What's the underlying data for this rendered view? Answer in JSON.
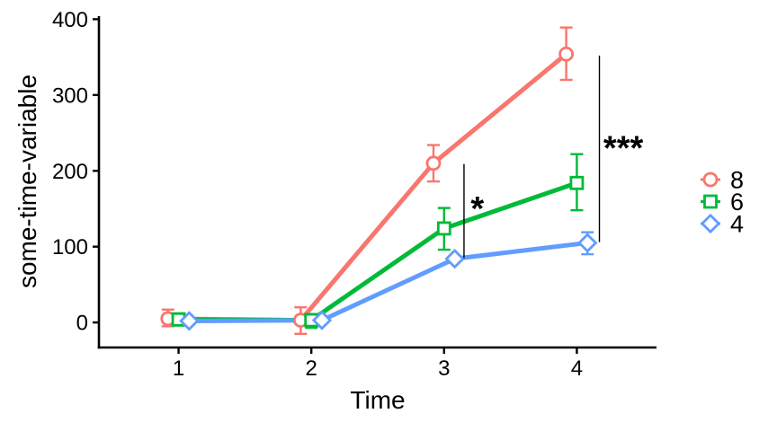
{
  "chart_data": {
    "type": "line",
    "title": "",
    "xlabel": "Time",
    "ylabel": "some-time-variable",
    "x_ticks": [
      1,
      2,
      3,
      4
    ],
    "y_ticks": [
      0,
      100,
      200,
      300,
      400
    ],
    "xlim": [
      0.4,
      4.6
    ],
    "ylim": [
      -33,
      404
    ],
    "grid": false,
    "legend_position": "right",
    "background_color": "#ffffff",
    "axis_color": "#000000",
    "point_fill": "#ffffff",
    "series": [
      {
        "name": "8",
        "shape": "circle",
        "color": "#F8766D",
        "dodge": -0.08,
        "x": [
          1,
          2,
          3,
          4
        ],
        "values": [
          5,
          3,
          210,
          354
        ],
        "err_low": [
          -5,
          -15,
          186,
          320
        ],
        "err_high": [
          17,
          20,
          234,
          389
        ]
      },
      {
        "name": "6",
        "shape": "square",
        "color": "#00BA38",
        "dodge": 0,
        "x": [
          1,
          2,
          3,
          4
        ],
        "values": [
          4,
          3,
          124,
          184
        ],
        "err_low": [
          -4,
          -7,
          96,
          148
        ],
        "err_high": [
          12,
          11,
          151,
          222
        ]
      },
      {
        "name": "4",
        "shape": "diamond",
        "color": "#619CFF",
        "dodge": 0.08,
        "x": [
          1,
          2,
          3,
          4
        ],
        "values": [
          2,
          3,
          84,
          105
        ],
        "err_low": [
          2,
          3,
          84,
          90
        ],
        "err_high": [
          2,
          3,
          84,
          119
        ]
      }
    ],
    "annotations": {
      "brackets": [
        {
          "x": 3.15,
          "y1": 209,
          "y2": 85
        },
        {
          "x": 4.17,
          "y1": 352,
          "y2": 106
        }
      ],
      "stars": [
        {
          "x": 3.25,
          "y": 157,
          "text": "*"
        },
        {
          "x": 4.35,
          "y": 237,
          "text": "***"
        }
      ]
    }
  }
}
